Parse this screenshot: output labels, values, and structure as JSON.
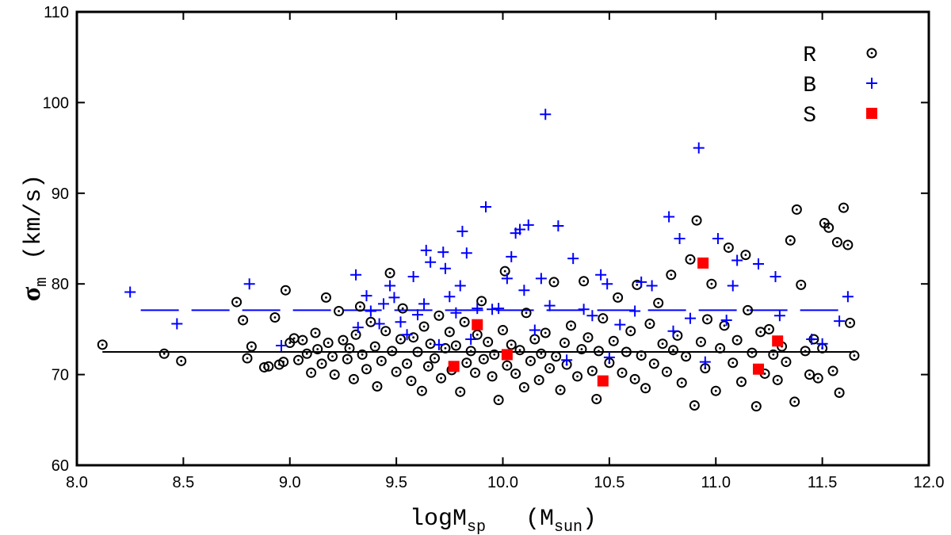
{
  "chart_data": {
    "type": "scatter",
    "x_label": {
      "text": "logM",
      "sub": "sp",
      "unit": "(M",
      "unit_sub": "sun",
      "unit_end": ")"
    },
    "y_label": {
      "text": "σ",
      "sub": "m",
      "unit": "(km/s)"
    },
    "xlim": [
      8,
      12
    ],
    "ylim": [
      60,
      110
    ],
    "xticks": [
      {
        "value": 8,
        "label": "8.0"
      },
      {
        "value": 8.5,
        "label": "8.5"
      },
      {
        "value": 9,
        "label": "9.0"
      },
      {
        "value": 9.5,
        "label": "9.5"
      },
      {
        "value": 10,
        "label": "10.0"
      },
      {
        "value": 10.5,
        "label": "10.5"
      },
      {
        "value": 11,
        "label": "11.0"
      },
      {
        "value": 11.5,
        "label": "11.5"
      },
      {
        "value": 12,
        "label": "12.0"
      }
    ],
    "yticks": [
      60,
      70,
      80,
      90,
      100,
      110
    ],
    "grid": false,
    "legend": "top-right",
    "series": [
      {
        "name": "R",
        "color": "#000000",
        "marker": "circle-dot",
        "x": [
          8.12,
          8.41,
          8.49,
          8.75,
          8.78,
          8.8,
          8.82,
          8.88,
          8.9,
          8.93,
          8.95,
          8.97,
          8.98,
          9.0,
          9.02,
          9.04,
          9.06,
          9.08,
          9.1,
          9.12,
          9.13,
          9.15,
          9.17,
          9.18,
          9.2,
          9.21,
          9.23,
          9.25,
          9.27,
          9.28,
          9.3,
          9.31,
          9.33,
          9.34,
          9.36,
          9.38,
          9.4,
          9.41,
          9.43,
          9.45,
          9.47,
          9.48,
          9.5,
          9.52,
          9.53,
          9.55,
          9.57,
          9.58,
          9.6,
          9.62,
          9.63,
          9.65,
          9.66,
          9.68,
          9.7,
          9.71,
          9.73,
          9.75,
          9.76,
          9.78,
          9.8,
          9.82,
          9.83,
          9.85,
          9.87,
          9.88,
          9.9,
          9.91,
          9.93,
          9.95,
          9.96,
          9.98,
          10.0,
          10.01,
          10.02,
          10.04,
          10.06,
          10.08,
          10.1,
          10.11,
          10.13,
          10.15,
          10.17,
          10.18,
          10.2,
          10.22,
          10.24,
          10.25,
          10.27,
          10.29,
          10.3,
          10.32,
          10.35,
          10.37,
          10.38,
          10.4,
          10.42,
          10.44,
          10.45,
          10.47,
          10.5,
          10.52,
          10.54,
          10.56,
          10.58,
          10.6,
          10.62,
          10.63,
          10.65,
          10.67,
          10.69,
          10.71,
          10.73,
          10.75,
          10.77,
          10.79,
          10.8,
          10.82,
          10.84,
          10.86,
          10.88,
          10.9,
          10.91,
          10.93,
          10.95,
          10.96,
          10.98,
          11.0,
          11.02,
          11.04,
          11.06,
          11.08,
          11.1,
          11.12,
          11.14,
          11.15,
          11.17,
          11.19,
          11.21,
          11.23,
          11.25,
          11.27,
          11.29,
          11.31,
          11.33,
          11.35,
          11.37,
          11.38,
          11.4,
          11.42,
          11.44,
          11.46,
          11.48,
          11.5,
          11.51,
          11.53,
          11.55,
          11.57,
          11.58,
          11.6,
          11.62,
          11.63,
          11.65
        ],
        "values": [
          73.3,
          72.3,
          71.5,
          78,
          76,
          71.8,
          73.1,
          70.8,
          70.9,
          76.3,
          71.1,
          71.4,
          79.3,
          73.5,
          74,
          71.6,
          73.8,
          72.3,
          70.2,
          74.6,
          72.8,
          71.2,
          78.5,
          73.5,
          72,
          70,
          77,
          73.8,
          71.7,
          72.9,
          69.5,
          74.4,
          77.5,
          72.2,
          70.6,
          75.8,
          73.1,
          68.7,
          71.5,
          74.8,
          81.2,
          72.6,
          70.3,
          73.9,
          77.3,
          71.2,
          69.3,
          74.1,
          72.5,
          68.2,
          75.3,
          70.9,
          73.4,
          71.8,
          76.5,
          69.6,
          72.9,
          74.7,
          70.5,
          73.2,
          68.1,
          75.8,
          71.3,
          72.6,
          70.2,
          74.4,
          78.1,
          71.7,
          73.6,
          69.8,
          72.2,
          67.2,
          74.9,
          81.4,
          71,
          73.3,
          70.1,
          72.7,
          68.6,
          76.8,
          71.5,
          73.9,
          69.4,
          72.3,
          74.6,
          70.7,
          80.2,
          72,
          68.3,
          73.5,
          71.1,
          75.4,
          69.8,
          72.8,
          80.3,
          74.1,
          70.4,
          67.3,
          72.6,
          76.2,
          71.3,
          73.7,
          78.5,
          70.2,
          72.5,
          74.8,
          69.5,
          79.9,
          72.1,
          68.5,
          75.6,
          71.2,
          77.9,
          73.4,
          70.3,
          81,
          72.7,
          74.3,
          69.1,
          72,
          82.7,
          66.6,
          87,
          73.6,
          70.7,
          76.1,
          80,
          68.2,
          72.9,
          75.4,
          84,
          71.3,
          73.8,
          69.2,
          83.2,
          77.1,
          72.4,
          66.5,
          74.7,
          70.1,
          75,
          72.2,
          69.4,
          73.1,
          71.4,
          84.8,
          67,
          88.2,
          79.9,
          72.6,
          70,
          73.9,
          69.6,
          72.9,
          86.7,
          86.2,
          70.4,
          84.6,
          68,
          88.4,
          84.3,
          75.7,
          72.1
        ]
      },
      {
        "name": "B",
        "color": "#0000ff",
        "marker": "plus",
        "x": [
          8.25,
          8.47,
          8.81,
          8.96,
          9.31,
          9.32,
          9.36,
          9.38,
          9.42,
          9.44,
          9.47,
          9.49,
          9.52,
          9.55,
          9.58,
          9.6,
          9.63,
          9.64,
          9.66,
          9.7,
          9.72,
          9.73,
          9.75,
          9.78,
          9.8,
          9.81,
          9.83,
          9.85,
          9.88,
          9.92,
          9.95,
          9.98,
          10.02,
          10.04,
          10.06,
          10.08,
          10.1,
          10.12,
          10.15,
          10.18,
          10.2,
          10.22,
          10.26,
          10.3,
          10.33,
          10.38,
          10.42,
          10.46,
          10.49,
          10.5,
          10.55,
          10.62,
          10.65,
          10.7,
          10.78,
          10.8,
          10.83,
          10.88,
          10.92,
          10.95,
          11.01,
          11.05,
          11.08,
          11.1,
          11.2,
          11.28,
          11.3,
          11.45,
          11.5,
          11.58,
          11.62
        ],
        "values": [
          79.1,
          75.6,
          80,
          73.2,
          81,
          75.2,
          78.7,
          77,
          75.6,
          77.8,
          79.8,
          78.5,
          75.8,
          74.4,
          80.8,
          76.6,
          77.8,
          83.7,
          82.4,
          73.3,
          83.5,
          81.7,
          78.6,
          76.8,
          79.8,
          85.8,
          83.4,
          73.9,
          77.3,
          88.5,
          77.2,
          77.3,
          80.6,
          83,
          85.6,
          86,
          79.3,
          86.5,
          74.9,
          80.6,
          98.7,
          77.6,
          86.4,
          71.6,
          82.8,
          77.2,
          76.5,
          81,
          80,
          71.9,
          75.5,
          77,
          80.2,
          79.8,
          87.4,
          74.8,
          85,
          76.2,
          95,
          71.4,
          85,
          76,
          79.8,
          82.6,
          82.2,
          80.8,
          76.5,
          73.9,
          73.4,
          75.9,
          78.6
        ]
      },
      {
        "name": "S",
        "color": "#ff0000",
        "marker": "square",
        "x": [
          9.77,
          9.88,
          10.02,
          10.47,
          10.94,
          11.2,
          11.29
        ],
        "values": [
          70.9,
          75.5,
          72.2,
          69.3,
          82.3,
          70.6,
          73.7
        ]
      }
    ],
    "lines": [
      {
        "y": 72.5,
        "x": [
          8.12,
          11.65
        ],
        "color": "#000000",
        "dash": "solid"
      },
      {
        "y": 77.1,
        "x": [
          8.3,
          11.6
        ],
        "color": "#0000ff",
        "dash": "dashed"
      }
    ]
  }
}
